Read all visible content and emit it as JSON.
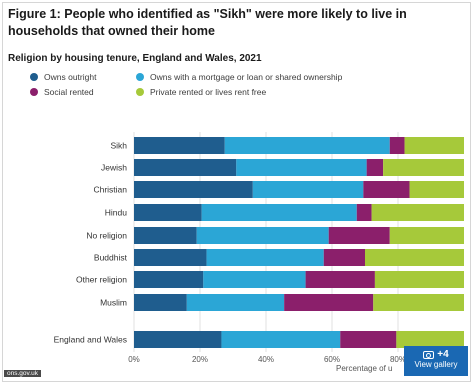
{
  "title": "Figure 1: People who identified as \"Sikh\" were more likely to live in households that owned their home",
  "subtitle": "Religion by housing tenure, England and Wales, 2021",
  "source_badge": "ons.gov.uk",
  "gallery": {
    "count": "+4",
    "label": "View gallery",
    "icon": "camera-icon"
  },
  "chart_data": {
    "type": "bar",
    "orientation": "horizontal",
    "stacked": true,
    "categories": [
      "Sikh",
      "Jewish",
      "Christian",
      "Hindu",
      "No religion",
      "Buddhist",
      "Other religion",
      "Muslim",
      "England and Wales"
    ],
    "series": [
      {
        "name": "Owns outright",
        "color": "#1f5d8e",
        "values": [
          27.5,
          31,
          36,
          20.5,
          19,
          22,
          21,
          16,
          26.5
        ]
      },
      {
        "name": "Owns with a mortgage or loan or shared ownership",
        "color": "#2ba6d6",
        "values": [
          50,
          39.5,
          33.5,
          47,
          40,
          35.5,
          31,
          29.5,
          36
        ]
      },
      {
        "name": "Social rented",
        "color": "#8b1f6b",
        "values": [
          4.5,
          5,
          14,
          4.5,
          18.5,
          12.5,
          21,
          27,
          17
        ]
      },
      {
        "name": "Private rented or lives rent free",
        "color": "#a6c93a",
        "values": [
          18,
          24.5,
          16.5,
          28,
          22.5,
          30,
          27,
          27.5,
          20.5
        ]
      }
    ],
    "xlim": [
      0,
      100
    ],
    "xticks": [
      "0%",
      "20%",
      "40%",
      "60%",
      "80%"
    ],
    "xlabel": "Percentage of u",
    "legend_position": "top",
    "grid": true
  }
}
